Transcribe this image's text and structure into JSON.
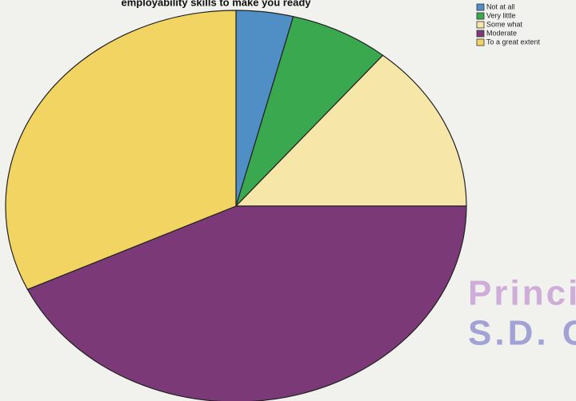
{
  "chart_data": {
    "type": "pie",
    "title": "employability skills to make you ready",
    "categories": [
      "Not at all",
      "Very little",
      "Some what",
      "Moderate",
      "To a great extent"
    ],
    "values": [
      4,
      7,
      14,
      43,
      32
    ],
    "colors": [
      "#4f8fc6",
      "#3aa84f",
      "#f6e6a8",
      "#7b3a77",
      "#f2d463"
    ],
    "legend": "top-right",
    "annotations": [
      "Princi",
      "S.D. C"
    ]
  }
}
